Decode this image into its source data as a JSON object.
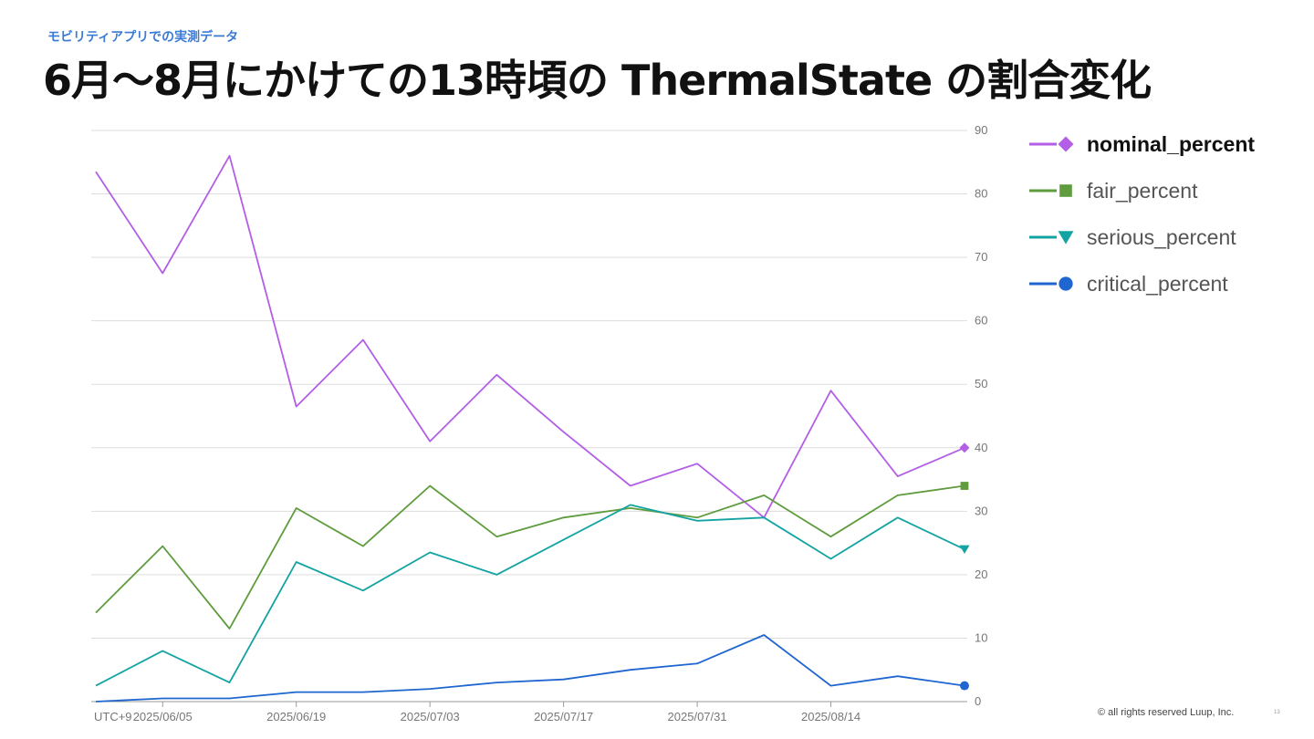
{
  "header": {
    "kicker": "モビリティアプリでの実測データ",
    "title": "6月〜8月にかけての13時頃の ThermalState の割合変化"
  },
  "footer": {
    "copyright": "© all rights reserved Luup, Inc.",
    "page": "13"
  },
  "chart_data": {
    "type": "line",
    "x": [
      "2025/05/29",
      "2025/06/05",
      "2025/06/12",
      "2025/06/19",
      "2025/06/26",
      "2025/07/03",
      "2025/07/10",
      "2025/07/17",
      "2025/07/24",
      "2025/07/31",
      "2025/08/07",
      "2025/08/14",
      "2025/08/21",
      "2025/08/28"
    ],
    "x_tick_labels": [
      "2025/06/05",
      "2025/06/19",
      "2025/07/03",
      "2025/07/17",
      "2025/07/31",
      "2025/08/14"
    ],
    "timezone_label": "UTC+9",
    "y_ticks": [
      0,
      10,
      20,
      30,
      40,
      50,
      60,
      70,
      80,
      90
    ],
    "ylim": [
      0,
      90
    ],
    "y_axis_position": "right",
    "grid": true,
    "legend_position": "right",
    "series": [
      {
        "name": "nominal_percent",
        "color": "#b35ee6",
        "marker": "diamond",
        "values": [
          83.5,
          67.5,
          86,
          46.5,
          57,
          41,
          51.5,
          42.5,
          34,
          37.5,
          29,
          49,
          35.5,
          40
        ]
      },
      {
        "name": "fair_percent",
        "color": "#5e9c3d",
        "marker": "square",
        "values": [
          14,
          24.5,
          11.5,
          30.5,
          24.5,
          34,
          26,
          29,
          30.5,
          29,
          32.5,
          26,
          32.5,
          34
        ]
      },
      {
        "name": "serious_percent",
        "color": "#13a3a3",
        "marker": "triangle-down",
        "values": [
          2.5,
          8,
          3,
          22,
          17.5,
          23.5,
          20,
          25.5,
          31,
          28.5,
          29,
          22.5,
          29,
          24
        ]
      },
      {
        "name": "critical_percent",
        "color": "#1f66d0",
        "marker": "circle",
        "values": [
          0,
          0.5,
          0.5,
          1.5,
          1.5,
          2,
          3,
          3.5,
          5,
          6,
          10.5,
          2.5,
          4,
          2.5
        ]
      }
    ]
  }
}
